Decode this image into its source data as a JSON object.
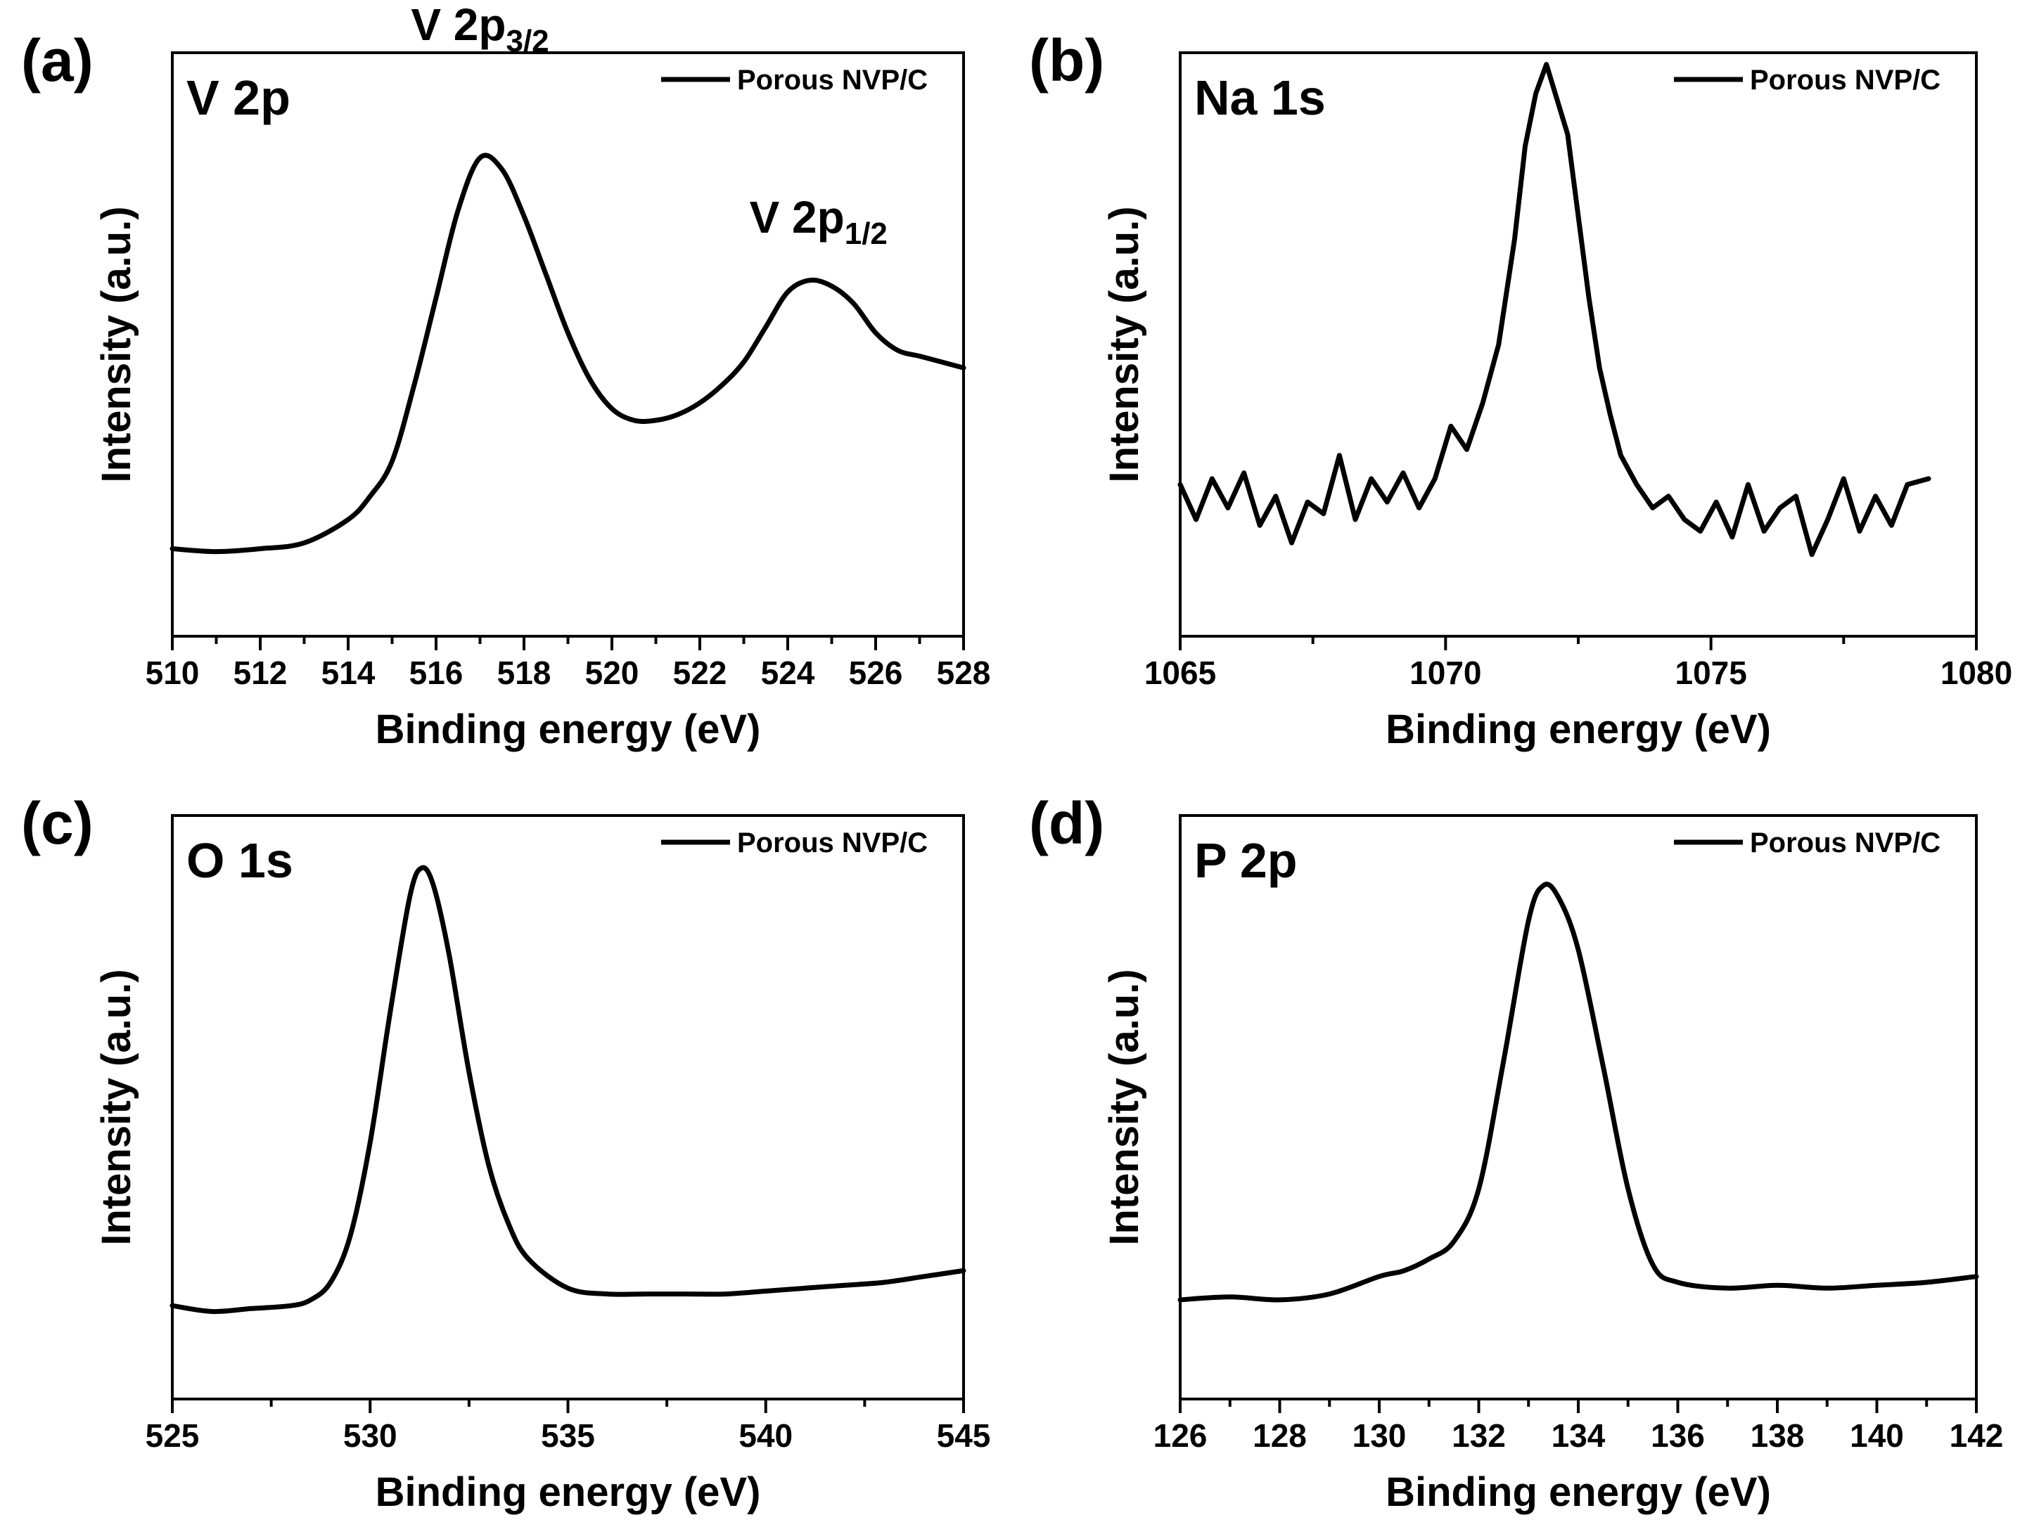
{
  "chart_data": [
    {
      "type": "line",
      "panel": "(a)",
      "element_label": "V 2p",
      "xlabel": "Binding energy (eV)",
      "ylabel": "Intensity (a.u.)",
      "xlim": [
        510,
        528
      ],
      "ylim": [
        0,
        100
      ],
      "xticks": [
        510,
        512,
        514,
        516,
        518,
        520,
        522,
        524,
        526,
        528
      ],
      "legend": "Porous NVP/C",
      "legend_position": "top-right",
      "annotations": [
        {
          "main": "V 2p",
          "sub": "3/2",
          "x": 517.0,
          "y": 100
        },
        {
          "main": "V 2p",
          "sub": "1/2",
          "x": 524.7,
          "y": 67
        }
      ],
      "series": [
        {
          "name": "Porous NVP/C",
          "smooth": true,
          "x": [
            510,
            511,
            512,
            513,
            514,
            514.5,
            515,
            515.5,
            516,
            516.5,
            517,
            517.5,
            518,
            518.5,
            519,
            519.5,
            520,
            520.5,
            521,
            521.5,
            522,
            522.5,
            523,
            523.5,
            524,
            524.5,
            525,
            525.5,
            526,
            526.5,
            527,
            527.5,
            528
          ],
          "y": [
            15,
            14.5,
            15,
            16,
            20,
            24,
            30,
            43,
            58,
            73,
            82,
            80,
            72,
            62,
            52,
            44,
            39,
            37,
            37,
            38,
            40,
            43,
            47,
            53,
            59,
            61,
            60,
            57,
            52,
            49,
            48,
            47,
            46
          ]
        }
      ]
    },
    {
      "type": "line",
      "panel": "(b)",
      "element_label": "Na 1s",
      "xlabel": "Binding energy (eV)",
      "ylabel": "Intensity (a.u.)",
      "xlim": [
        1065,
        1080
      ],
      "ylim": [
        0,
        100
      ],
      "xticks": [
        1065,
        1070,
        1075,
        1080
      ],
      "legend": "Porous NVP/C",
      "legend_position": "top-right",
      "series": [
        {
          "name": "Porous NVP/C",
          "smooth": false,
          "x": [
            1065,
            1065.3,
            1065.6,
            1065.9,
            1066.2,
            1066.5,
            1066.8,
            1067.1,
            1067.4,
            1067.7,
            1068,
            1068.3,
            1068.6,
            1068.9,
            1069.2,
            1069.5,
            1069.8,
            1070.1,
            1070.4,
            1070.7,
            1071,
            1071.3,
            1071.5,
            1071.7,
            1071.9,
            1072.1,
            1072.3,
            1072.5,
            1072.7,
            1072.9,
            1073.1,
            1073.3,
            1073.6,
            1073.9,
            1074.2,
            1074.5,
            1074.8,
            1075.1,
            1075.4,
            1075.7,
            1076,
            1076.3,
            1076.6,
            1076.9,
            1077.2,
            1077.5,
            1077.8,
            1078.1,
            1078.4,
            1078.7,
            1079.1
          ],
          "y": [
            26,
            20,
            27,
            22,
            28,
            19,
            24,
            16,
            23,
            21,
            31,
            20,
            27,
            23,
            28,
            22,
            27,
            36,
            32,
            40,
            50,
            68,
            84,
            93,
            98,
            92,
            86,
            72,
            58,
            46,
            38,
            31,
            26,
            22,
            24,
            20,
            18,
            23,
            17,
            26,
            18,
            22,
            24,
            14,
            20,
            27,
            18,
            24,
            19,
            26,
            27
          ]
        }
      ]
    },
    {
      "type": "line",
      "panel": "(c)",
      "element_label": "O 1s",
      "xlabel": "Binding energy (eV)",
      "ylabel": "Intensity (a.u.)",
      "xlim": [
        525,
        545
      ],
      "ylim": [
        0,
        100
      ],
      "xticks": [
        525,
        530,
        535,
        540,
        545
      ],
      "legend": "Porous NVP/C",
      "legend_position": "top-right",
      "series": [
        {
          "name": "Porous NVP/C",
          "smooth": true,
          "x": [
            525,
            526,
            527,
            528,
            528.5,
            529,
            529.5,
            530,
            530.5,
            531,
            531.3,
            531.6,
            532,
            532.5,
            533,
            533.5,
            534,
            535,
            536,
            537,
            538,
            539,
            540,
            541,
            542,
            543,
            544,
            545
          ],
          "y": [
            16,
            15,
            15.5,
            16,
            17,
            20,
            28,
            44,
            66,
            86,
            91,
            88,
            76,
            56,
            40,
            30,
            24,
            19,
            18,
            18,
            18,
            18,
            18.5,
            19,
            19.5,
            20,
            21,
            22
          ]
        }
      ]
    },
    {
      "type": "line",
      "panel": "(d)",
      "element_label": "P 2p",
      "xlabel": "Binding energy (eV)",
      "ylabel": "Intensity (a.u.)",
      "xlim": [
        126,
        142
      ],
      "ylim": [
        0,
        100
      ],
      "xticks": [
        126,
        128,
        130,
        132,
        134,
        136,
        138,
        140,
        142
      ],
      "legend": "Porous NVP/C",
      "legend_position": "top-right",
      "series": [
        {
          "name": "Porous NVP/C",
          "smooth": true,
          "x": [
            126,
            127,
            128,
            129,
            130,
            130.5,
            131,
            131.5,
            132,
            132.5,
            133,
            133.3,
            133.6,
            134,
            134.5,
            135,
            135.5,
            136,
            137,
            138,
            139,
            140,
            141,
            142
          ],
          "y": [
            17,
            17.5,
            17,
            18,
            21,
            22,
            24,
            27,
            36,
            58,
            82,
            88,
            86,
            77,
            57,
            36,
            23,
            20,
            19,
            19.5,
            19,
            19.5,
            20,
            21
          ]
        }
      ]
    }
  ]
}
